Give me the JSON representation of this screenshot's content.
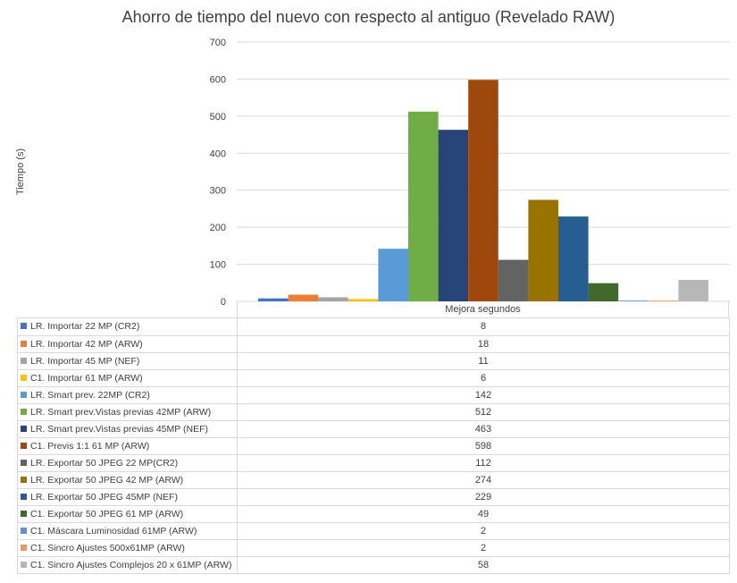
{
  "chart_data": {
    "type": "bar",
    "title": "Ahorro de tiempo del nuevo con respecto al antiguo (Revelado RAW)",
    "ylabel": "Tiempo (s)",
    "categories": [
      "Mejora segundos"
    ],
    "ylim": [
      0,
      700
    ],
    "yticks": [
      "0",
      "100",
      "200",
      "300",
      "400",
      "500",
      "600",
      "700"
    ],
    "grid": true,
    "legend": "data-table",
    "series": [
      {
        "name": "LR. Importar 22 MP (CR2)",
        "values": [
          8
        ],
        "color": "#4472c4"
      },
      {
        "name": "LR. Importar 42 MP (ARW)",
        "values": [
          18
        ],
        "color": "#ed7d31"
      },
      {
        "name": "LR. Importar 45 MP (NEF)",
        "values": [
          11
        ],
        "color": "#a5a5a5"
      },
      {
        "name": "C1. Importar 61 MP (ARW)",
        "values": [
          6
        ],
        "color": "#ffc000"
      },
      {
        "name": "LR. Smart prev. 22MP (CR2)",
        "values": [
          142
        ],
        "color": "#5b9bd5"
      },
      {
        "name": "LR. Smart prev.Vistas previas 42MP (ARW)",
        "values": [
          512
        ],
        "color": "#70ad47"
      },
      {
        "name": "LR. Smart prev.Vistas previas 45MP (NEF)",
        "values": [
          463
        ],
        "color": "#264478"
      },
      {
        "name": "C1. Previs 1:1 61 MP (ARW)",
        "values": [
          598
        ],
        "color": "#9e480e"
      },
      {
        "name": "LR. Exportar 50 JPEG 22 MP(CR2)",
        "values": [
          112
        ],
        "color": "#636363"
      },
      {
        "name": "LR. Exportar 50 JPEG 42 MP (ARW)",
        "values": [
          274
        ],
        "color": "#997300"
      },
      {
        "name": "LR. Exportar 50 JPEG 45MP (NEF)",
        "values": [
          229
        ],
        "color": "#255e91"
      },
      {
        "name": "C1. Exportar 50 JPEG 61 MP (ARW)",
        "values": [
          49
        ],
        "color": "#43682b"
      },
      {
        "name": "C1. Máscara Luminosidad 61MP (ARW)",
        "values": [
          2
        ],
        "color": "#698ed0"
      },
      {
        "name": "C1. Sincro Ajustes 500x61MP (ARW)",
        "values": [
          2
        ],
        "color": "#f1975a"
      },
      {
        "name": "C1. Sincro Ajustes Complejos 20 x 61MP (ARW)",
        "values": [
          58
        ],
        "color": "#b7b7b7"
      }
    ]
  }
}
